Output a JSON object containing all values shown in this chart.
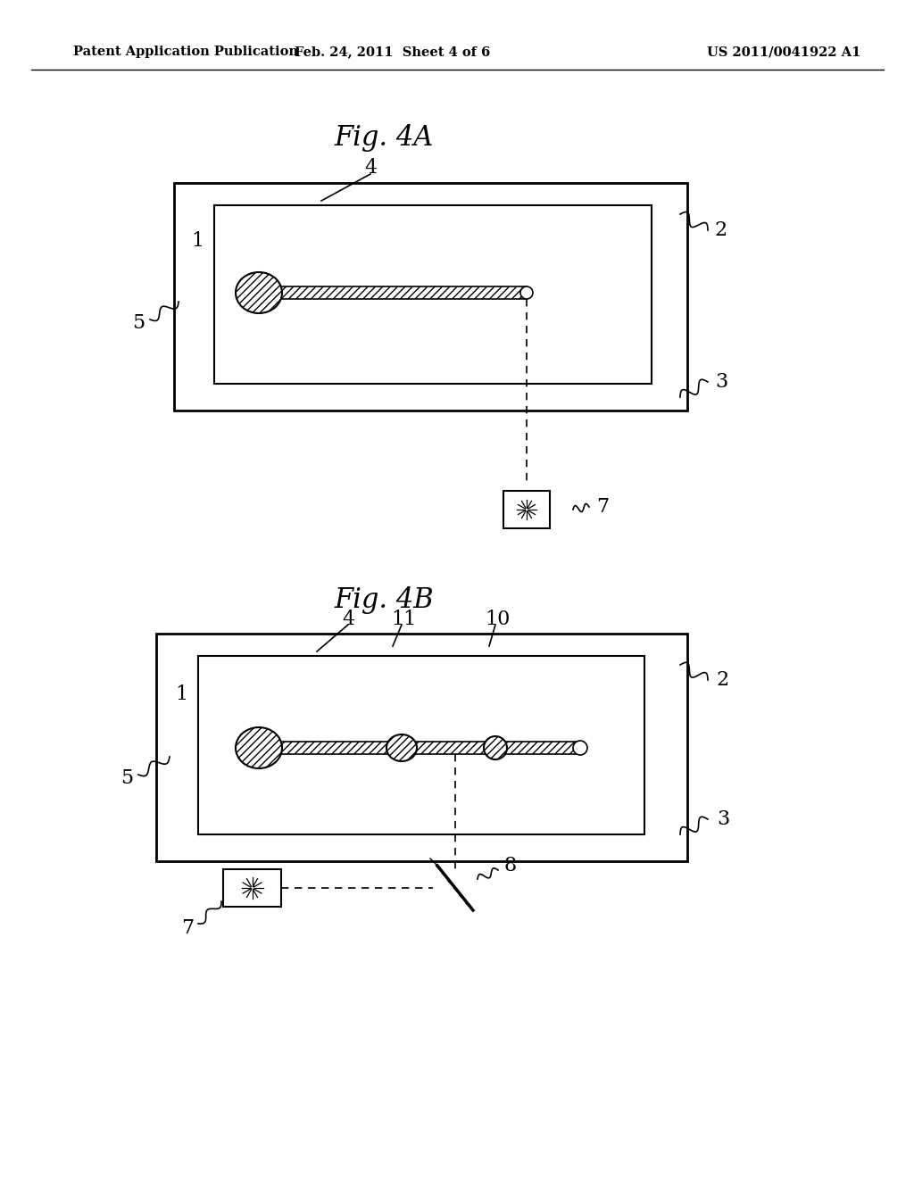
{
  "bg_color": "#ffffff",
  "text_color": "#000000",
  "header_left": "Patent Application Publication",
  "header_mid": "Feb. 24, 2011  Sheet 4 of 6",
  "header_right": "US 2011/0041922 A1",
  "fig4a_title": "Fig. 4A",
  "fig4b_title": "Fig. 4B"
}
